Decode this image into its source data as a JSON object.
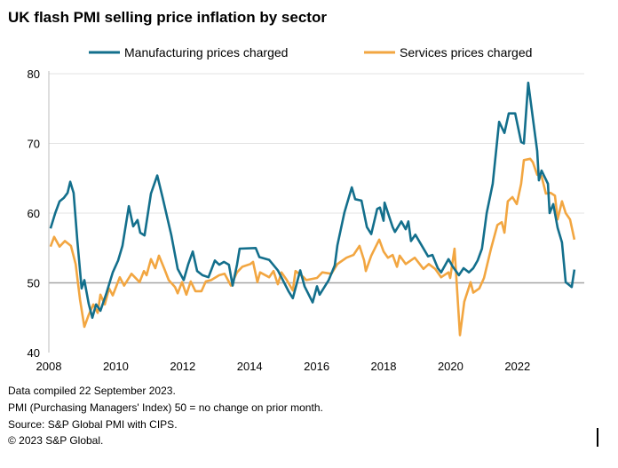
{
  "chart_data": {
    "type": "line",
    "title": "UK flash PMI selling price inflation by sector",
    "xlabel": "",
    "ylabel": "",
    "xlim": [
      2008,
      2023.9
    ],
    "ylim": [
      40,
      80
    ],
    "x_ticks": [
      "2008",
      "2010",
      "2012",
      "2014",
      "2016",
      "2018",
      "2020",
      "2022"
    ],
    "y_ticks": [
      "40",
      "50",
      "60",
      "70",
      "80"
    ],
    "grid": true,
    "legend": "top",
    "series": [
      {
        "name": "Manufacturing prices charged",
        "color": "#136f8c",
        "points": [
          [
            2008.05,
            57.8
          ],
          [
            2008.19,
            60
          ],
          [
            2008.32,
            61.7
          ],
          [
            2008.45,
            62.2
          ],
          [
            2008.56,
            62.9
          ],
          [
            2008.64,
            64.5
          ],
          [
            2008.74,
            62.9
          ],
          [
            2008.85,
            56.2
          ],
          [
            2008.98,
            49.2
          ],
          [
            2009.06,
            50.4
          ],
          [
            2009.19,
            47
          ],
          [
            2009.3,
            45
          ],
          [
            2009.41,
            46.9
          ],
          [
            2009.54,
            46
          ],
          [
            2009.72,
            48.5
          ],
          [
            2009.91,
            51.5
          ],
          [
            2010.07,
            53.2
          ],
          [
            2010.2,
            55.3
          ],
          [
            2010.39,
            61
          ],
          [
            2010.52,
            58.1
          ],
          [
            2010.65,
            59
          ],
          [
            2010.73,
            57.2
          ],
          [
            2010.86,
            56.8
          ],
          [
            2011.05,
            62.8
          ],
          [
            2011.24,
            65.4
          ],
          [
            2011.4,
            62.2
          ],
          [
            2011.66,
            56.8
          ],
          [
            2011.85,
            52
          ],
          [
            2012.03,
            50.4
          ],
          [
            2012.16,
            52.6
          ],
          [
            2012.3,
            54.5
          ],
          [
            2012.43,
            51.7
          ],
          [
            2012.59,
            51.1
          ],
          [
            2012.77,
            50.8
          ],
          [
            2012.96,
            53.2
          ],
          [
            2013.09,
            52.6
          ],
          [
            2013.23,
            53
          ],
          [
            2013.38,
            52.6
          ],
          [
            2013.49,
            49.6
          ],
          [
            2013.62,
            52.6
          ],
          [
            2013.7,
            54.9
          ],
          [
            2014.18,
            55
          ],
          [
            2014.29,
            53.7
          ],
          [
            2014.58,
            53.3
          ],
          [
            2014.84,
            51.8
          ],
          [
            2015.16,
            48.8
          ],
          [
            2015.29,
            47.8
          ],
          [
            2015.51,
            51.8
          ],
          [
            2015.64,
            49.5
          ],
          [
            2015.88,
            47.2
          ],
          [
            2016.01,
            49.5
          ],
          [
            2016.09,
            48.3
          ],
          [
            2016.36,
            50.4
          ],
          [
            2016.54,
            52.5
          ],
          [
            2016.62,
            55.4
          ],
          [
            2016.83,
            60.1
          ],
          [
            2017.05,
            63.7
          ],
          [
            2017.15,
            62
          ],
          [
            2017.34,
            61.8
          ],
          [
            2017.5,
            58
          ],
          [
            2017.63,
            57
          ],
          [
            2017.81,
            60.6
          ],
          [
            2017.89,
            60.8
          ],
          [
            2018.0,
            58.9
          ],
          [
            2018.03,
            61.5
          ],
          [
            2018.27,
            58
          ],
          [
            2018.34,
            57.3
          ],
          [
            2018.53,
            58.8
          ],
          [
            2018.66,
            57.7
          ],
          [
            2018.74,
            58.8
          ],
          [
            2018.82,
            56
          ],
          [
            2018.95,
            56.9
          ],
          [
            2019.33,
            53.8
          ],
          [
            2019.46,
            54
          ],
          [
            2019.62,
            52.1
          ],
          [
            2019.72,
            51.5
          ],
          [
            2019.94,
            53.4
          ],
          [
            2020.07,
            52.3
          ],
          [
            2020.25,
            51.1
          ],
          [
            2020.39,
            52.1
          ],
          [
            2020.55,
            51.5
          ],
          [
            2020.68,
            52.1
          ],
          [
            2020.81,
            53.2
          ],
          [
            2020.94,
            54.9
          ],
          [
            2021.08,
            60
          ],
          [
            2021.26,
            64.2
          ],
          [
            2021.45,
            73.1
          ],
          [
            2021.61,
            71.5
          ],
          [
            2021.74,
            74.3
          ],
          [
            2021.93,
            74.3
          ],
          [
            2022.11,
            70.2
          ],
          [
            2022.19,
            70
          ],
          [
            2022.32,
            78.7
          ],
          [
            2022.51,
            71.8
          ],
          [
            2022.59,
            68.9
          ],
          [
            2022.64,
            64.7
          ],
          [
            2022.72,
            66.1
          ],
          [
            2022.91,
            64.2
          ],
          [
            2022.96,
            60
          ],
          [
            2023.07,
            61.3
          ],
          [
            2023.2,
            57.9
          ],
          [
            2023.33,
            55.8
          ],
          [
            2023.44,
            50.1
          ],
          [
            2023.62,
            49.4
          ],
          [
            2023.7,
            51.9
          ]
        ]
      },
      {
        "name": "Services prices charged",
        "color": "#f2a641",
        "points": [
          [
            2008.05,
            55.2
          ],
          [
            2008.16,
            56.6
          ],
          [
            2008.32,
            55.2
          ],
          [
            2008.48,
            56
          ],
          [
            2008.66,
            55.3
          ],
          [
            2008.8,
            52.7
          ],
          [
            2008.93,
            47.6
          ],
          [
            2009.06,
            43.7
          ],
          [
            2009.19,
            45.4
          ],
          [
            2009.33,
            46.9
          ],
          [
            2009.46,
            45.7
          ],
          [
            2009.54,
            48.3
          ],
          [
            2009.67,
            46.9
          ],
          [
            2009.8,
            49.2
          ],
          [
            2009.91,
            48.2
          ],
          [
            2010.12,
            50.8
          ],
          [
            2010.25,
            49.6
          ],
          [
            2010.47,
            51.3
          ],
          [
            2010.71,
            50.1
          ],
          [
            2010.84,
            51.7
          ],
          [
            2010.92,
            51.1
          ],
          [
            2011.05,
            53.4
          ],
          [
            2011.18,
            52.1
          ],
          [
            2011.29,
            53.9
          ],
          [
            2011.45,
            52
          ],
          [
            2011.58,
            50.4
          ],
          [
            2011.77,
            49.4
          ],
          [
            2011.85,
            48.5
          ],
          [
            2011.98,
            50.1
          ],
          [
            2012.11,
            48.3
          ],
          [
            2012.24,
            50.2
          ],
          [
            2012.38,
            48.8
          ],
          [
            2012.56,
            48.8
          ],
          [
            2012.69,
            50.2
          ],
          [
            2012.85,
            50.4
          ],
          [
            2013.09,
            51.1
          ],
          [
            2013.25,
            51.3
          ],
          [
            2013.44,
            49.6
          ],
          [
            2013.62,
            51.5
          ],
          [
            2013.78,
            52.3
          ],
          [
            2014.02,
            52.7
          ],
          [
            2014.1,
            53
          ],
          [
            2014.23,
            50.1
          ],
          [
            2014.31,
            51.5
          ],
          [
            2014.58,
            50.8
          ],
          [
            2014.71,
            51.7
          ],
          [
            2014.84,
            49.8
          ],
          [
            2014.95,
            51.5
          ],
          [
            2015.11,
            50.4
          ],
          [
            2015.29,
            48.9
          ],
          [
            2015.37,
            51.7
          ],
          [
            2015.61,
            50.8
          ],
          [
            2015.69,
            50.4
          ],
          [
            2016.01,
            50.7
          ],
          [
            2016.17,
            51.5
          ],
          [
            2016.44,
            51.3
          ],
          [
            2016.62,
            52.7
          ],
          [
            2016.89,
            53.6
          ],
          [
            2017.1,
            54
          ],
          [
            2017.28,
            55.3
          ],
          [
            2017.42,
            53.2
          ],
          [
            2017.47,
            51.7
          ],
          [
            2017.63,
            53.9
          ],
          [
            2017.87,
            56.2
          ],
          [
            2018.0,
            54.5
          ],
          [
            2018.13,
            53.6
          ],
          [
            2018.27,
            54
          ],
          [
            2018.4,
            52.3
          ],
          [
            2018.48,
            53.9
          ],
          [
            2018.66,
            52.7
          ],
          [
            2018.93,
            53.6
          ],
          [
            2019.19,
            52
          ],
          [
            2019.35,
            52.7
          ],
          [
            2019.54,
            52
          ],
          [
            2019.72,
            50.8
          ],
          [
            2019.94,
            51.5
          ],
          [
            2019.99,
            50.7
          ],
          [
            2020.12,
            54.9
          ],
          [
            2020.28,
            42.5
          ],
          [
            2020.41,
            47.3
          ],
          [
            2020.6,
            50.1
          ],
          [
            2020.68,
            48.6
          ],
          [
            2020.86,
            49.2
          ],
          [
            2021.0,
            50.7
          ],
          [
            2021.08,
            52.3
          ],
          [
            2021.21,
            54.9
          ],
          [
            2021.4,
            58.3
          ],
          [
            2021.53,
            58.7
          ],
          [
            2021.61,
            57.2
          ],
          [
            2021.71,
            61.7
          ],
          [
            2021.85,
            62.3
          ],
          [
            2021.98,
            61.3
          ],
          [
            2022.11,
            64.2
          ],
          [
            2022.19,
            67.6
          ],
          [
            2022.38,
            67.8
          ],
          [
            2022.46,
            67.3
          ],
          [
            2022.59,
            65.5
          ],
          [
            2022.72,
            65.3
          ],
          [
            2022.85,
            62.8
          ],
          [
            2022.99,
            62.9
          ],
          [
            2023.12,
            62.5
          ],
          [
            2023.2,
            59.1
          ],
          [
            2023.33,
            61.7
          ],
          [
            2023.44,
            60
          ],
          [
            2023.57,
            59.1
          ],
          [
            2023.7,
            56.2
          ]
        ]
      }
    ]
  },
  "footer": {
    "line1": "Data compiled 22 September 2023.",
    "line2": "PMI (Purchasing Managers' Index) 50 = no change on prior month.",
    "line3": "Source: S&P Global PMI with CIPS.",
    "line4": "© 2023 S&P Global."
  }
}
